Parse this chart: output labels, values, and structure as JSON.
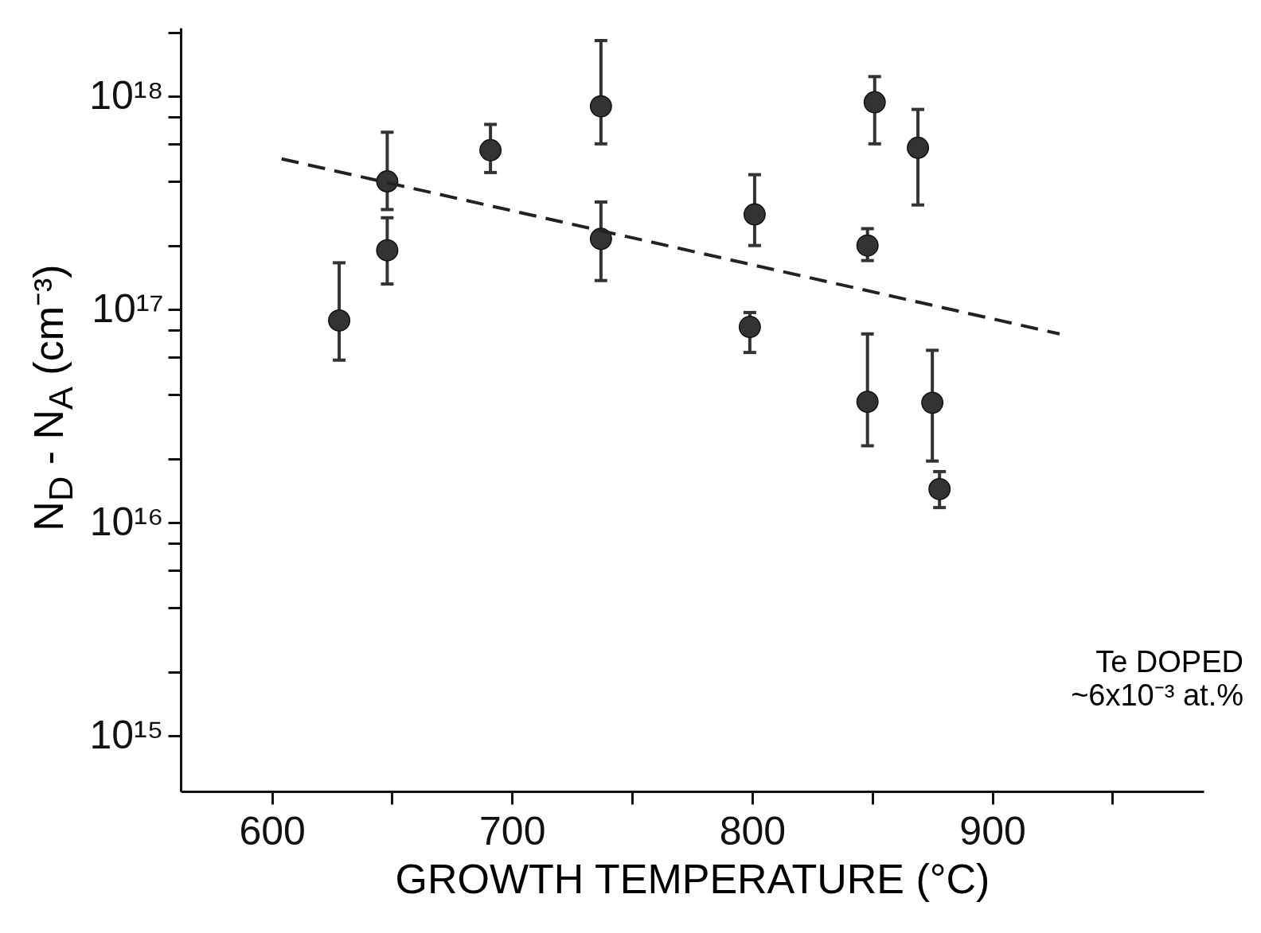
{
  "chart_data": {
    "type": "scatter",
    "xlabel": "GROWTH TEMPERATURE (°C)",
    "ylabel": "N$_{D}$ - N$_{A}$  (cm⁻³)",
    "annotations": [
      "Te DOPED\n~6x10⁻³ at.%"
    ],
    "xlim": [
      562,
      988
    ],
    "xticks": [
      600,
      {
        "value": 650,
        "label": null
      },
      700,
      {
        "value": 750,
        "label": null
      },
      800,
      {
        "value": 850,
        "label": null
      },
      900,
      {
        "value": 950,
        "label": null
      }
    ],
    "ylim": [
      550000000000000.0,
      2.1e+18
    ],
    "log": "y",
    "yticks": [
      {
        "value": 1000000000000000.0,
        "label": "10¹⁵"
      },
      {
        "value": 2000000000000000.0,
        "label": null
      },
      {
        "value": 4000000000000000.0,
        "label": null
      },
      {
        "value": 6000000000000000.0,
        "label": null
      },
      {
        "value": 8000000000000000.0,
        "label": null
      },
      {
        "value": 1e+16,
        "label": "10¹⁶"
      },
      {
        "value": 2e+16,
        "label": null
      },
      {
        "value": 4e+16,
        "label": null
      },
      {
        "value": 6e+16,
        "label": null
      },
      {
        "value": 8e+16,
        "label": null
      },
      {
        "value": 1e+17,
        "label": "10¹⁷"
      },
      {
        "value": 2e+17,
        "label": null
      },
      {
        "value": 4e+17,
        "label": null
      },
      {
        "value": 6e+17,
        "label": null
      },
      {
        "value": 8e+17,
        "label": null
      },
      {
        "value": 1e+18,
        "label": "10¹⁸"
      },
      {
        "value": 2e+18,
        "label": null
      }
    ],
    "series": [
      {
        "marker": "circle",
        "color": "#333333",
        "x": [
          628,
          648,
          648,
          691,
          737,
          737,
          801,
          799,
          851,
          869,
          848,
          848,
          875,
          878
        ],
        "values": [
          8.9e+16,
          4e+17,
          1.9e+17,
          5.6e+17,
          9e+17,
          2.15e+17,
          2.8e+17,
          8.3e+16,
          9.4e+17,
          5.75e+17,
          2e+17,
          3.7e+16,
          3.66e+16,
          1.44e+16
        ],
        "errors": [
          [
            5.8e+16,
            1.66e+17
          ],
          [
            2.95e+17,
            6.8e+17
          ],
          [
            1.32e+17,
            2.7e+17
          ],
          [
            4.4e+17,
            7.4e+17
          ],
          [
            6e+17,
            1.83e+18
          ],
          [
            1.37e+17,
            3.2e+17
          ],
          [
            2e+17,
            4.3e+17
          ],
          [
            6.3e+16,
            9.7e+16
          ],
          [
            6e+17,
            1.24e+18
          ],
          [
            3.1e+17,
            8.7e+17
          ],
          [
            1.7e+17,
            2.4e+17
          ],
          [
            2.3e+16,
            7.7e+16
          ],
          [
            1.95e+16,
            6.45e+16
          ],
          [
            1.18e+16,
            1.74e+16
          ]
        ]
      },
      {
        "type": "line",
        "line_style": "dashed",
        "marker": "none",
        "color": "#222222",
        "x": [
          604,
          928
        ],
        "values": [
          5.1e+17,
          7.7e+16
        ]
      }
    ]
  }
}
